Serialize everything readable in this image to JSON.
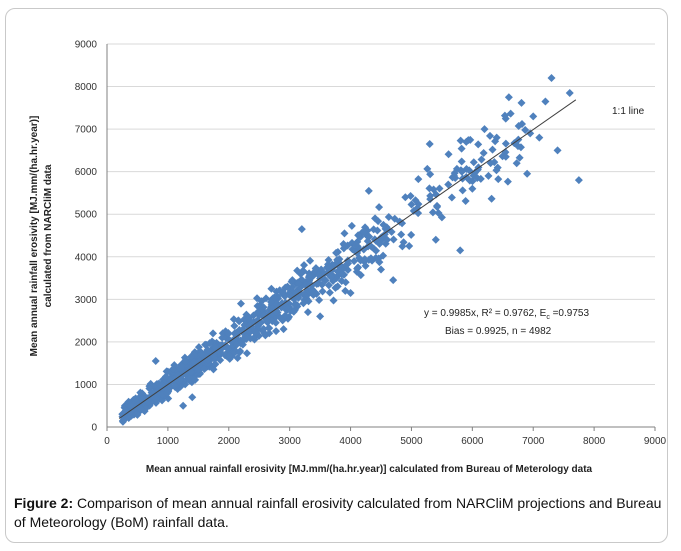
{
  "chart_data": {
    "type": "scatter",
    "xlabel": "Mean annual rainfall erosivity [MJ.mm/(ha.hr.year)] calculated from Bureau of Meterology data",
    "ylabel_lines": [
      "Mean annual rainfall erosivity [MJ.mm/(ha.hr.year)]",
      "calculated from NARCliM data"
    ],
    "xlim": [
      0,
      9000
    ],
    "ylim": [
      0,
      9000
    ],
    "xticks": [
      0,
      1000,
      2000,
      3000,
      4000,
      5000,
      6000,
      7000,
      8000,
      9000
    ],
    "yticks": [
      0,
      1000,
      2000,
      3000,
      4000,
      5000,
      6000,
      7000,
      8000,
      9000
    ],
    "grid": "horizontal",
    "marker_color": "#4f81bd",
    "line_color": "#404040",
    "fit_line": {
      "label": "1:1 line",
      "slope": 0.9985,
      "x_range": [
        200,
        7700
      ]
    },
    "equation_line1": "y = 0.9985x, R² = 0.9762, E",
    "equation_sub": "c",
    "equation_tail": " =0.9753",
    "equation_line2": "Bias = 0.9925, n = 4982",
    "highlight_points": [
      [
        7300,
        8200
      ],
      [
        7200,
        7650
      ],
      [
        7600,
        7850
      ],
      [
        6600,
        7750
      ],
      [
        7000,
        7300
      ],
      [
        7100,
        6800
      ],
      [
        7400,
        6500
      ],
      [
        6900,
        5950
      ],
      [
        7750,
        5800
      ],
      [
        5800,
        4150
      ],
      [
        5300,
        6650
      ],
      [
        6200,
        7000
      ],
      [
        6400,
        6800
      ],
      [
        5900,
        6700
      ],
      [
        5700,
        5900
      ],
      [
        6100,
        6100
      ],
      [
        6300,
        6200
      ],
      [
        6550,
        6350
      ],
      [
        6750,
        6600
      ],
      [
        6950,
        6900
      ],
      [
        4700,
        3450
      ],
      [
        4500,
        3700
      ],
      [
        4000,
        3150
      ],
      [
        3500,
        2600
      ],
      [
        3300,
        2700
      ],
      [
        1250,
        500
      ],
      [
        1400,
        700
      ],
      [
        800,
        1550
      ],
      [
        1000,
        1300
      ],
      [
        4300,
        5550
      ],
      [
        4900,
        5400
      ],
      [
        5100,
        5150
      ],
      [
        4600,
        4400
      ],
      [
        3900,
        4550
      ],
      [
        3200,
        4650
      ],
      [
        2700,
        3250
      ],
      [
        2200,
        2900
      ],
      [
        2900,
        2300
      ],
      [
        5400,
        4400
      ],
      [
        6000,
        5600
      ]
    ]
  },
  "caption": {
    "label": "Figure 2:",
    "text": " Comparison of mean annual rainfall erosivity calculated from NARCliM projections and Bureau of Meteorology (BoM) rainfall data."
  }
}
